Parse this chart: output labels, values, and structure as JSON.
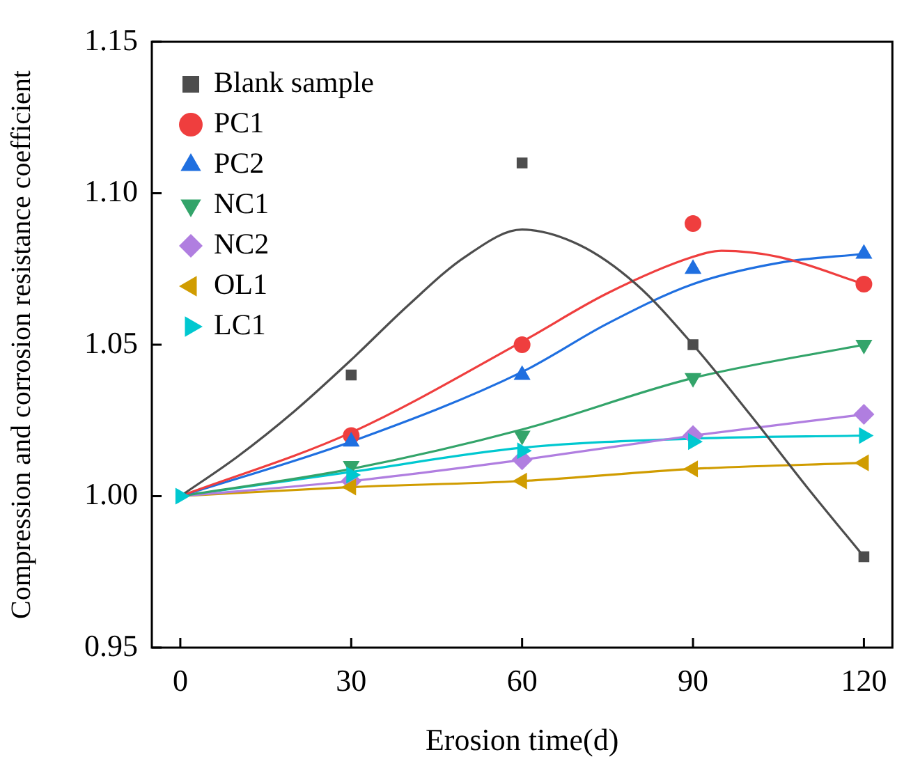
{
  "chart_data": {
    "type": "scatter",
    "xlabel": "Erosion time(d)",
    "ylabel": "Compression and corrosion resistance coefficient",
    "x": [
      0,
      30,
      60,
      90,
      120
    ],
    "xlim": [
      -5,
      125
    ],
    "xticks": [
      0,
      30,
      60,
      90,
      120
    ],
    "ylim": [
      0.95,
      1.15
    ],
    "yticks": [
      0.95,
      {
        "value": 1.0,
        "label": "1.00"
      },
      1.05,
      {
        "value": 1.1,
        "label": "1.10"
      },
      1.15
    ],
    "grid": false,
    "legend": "top left",
    "series": [
      {
        "name": "Blank sample",
        "marker": "square",
        "color": "#4d4d4d",
        "values": [
          null,
          1.04,
          1.11,
          1.05,
          0.98
        ]
      },
      {
        "name": "PC1",
        "marker": "circle",
        "color": "#ef3e3e",
        "values": [
          null,
          1.02,
          1.05,
          1.09,
          1.07
        ]
      },
      {
        "name": "PC2",
        "marker": "triangle",
        "color": "#1f6fe0",
        "values": [
          null,
          1.018,
          1.04,
          1.075,
          1.08
        ]
      },
      {
        "name": "NC1",
        "marker": "triangle-down",
        "color": "#33a46a",
        "values": [
          null,
          1.01,
          1.02,
          1.039,
          1.05
        ]
      },
      {
        "name": "NC2",
        "marker": "diamond",
        "color": "#b07ee0",
        "values": [
          null,
          1.005,
          1.012,
          1.02,
          1.027
        ]
      },
      {
        "name": "OL1",
        "marker": "triangle-left",
        "color": "#d09c00",
        "values": [
          null,
          1.003,
          1.005,
          1.009,
          1.011
        ]
      },
      {
        "name": "LC1",
        "marker": "triangle-right",
        "color": "#00c8d0",
        "values": [
          1.0,
          1.007,
          1.015,
          1.018,
          1.02
        ]
      },
      {
        "type": "line",
        "marker": "none",
        "color": "#4d4d4d",
        "x": [
          0,
          10,
          20,
          30,
          40,
          50,
          60,
          70,
          80,
          90,
          100,
          110,
          120
        ],
        "values": [
          1.0,
          1.013,
          1.028,
          1.045,
          1.063,
          1.079,
          1.088,
          1.083,
          1.07,
          1.05,
          1.027,
          1.003,
          0.98
        ]
      },
      {
        "type": "line",
        "marker": "none",
        "color": "#ef3e3e",
        "x": [
          0,
          30,
          60,
          75,
          90,
          95,
          105,
          120
        ],
        "values": [
          1.0,
          1.021,
          1.051,
          1.067,
          1.079,
          1.081,
          1.079,
          1.07
        ]
      },
      {
        "type": "line",
        "marker": "none",
        "color": "#1f6fe0",
        "x": [
          0,
          30,
          60,
          75,
          90,
          105,
          120
        ],
        "values": [
          1.0,
          1.018,
          1.041,
          1.057,
          1.07,
          1.077,
          1.08
        ]
      },
      {
        "type": "line",
        "marker": "none",
        "color": "#33a46a",
        "x": [
          0,
          30,
          60,
          90,
          120
        ],
        "values": [
          1.0,
          1.009,
          1.022,
          1.039,
          1.05
        ]
      },
      {
        "type": "line",
        "marker": "none",
        "color": "#b07ee0",
        "x": [
          0,
          30,
          60,
          90,
          120
        ],
        "values": [
          1.0,
          1.005,
          1.012,
          1.02,
          1.027
        ]
      },
      {
        "type": "line",
        "marker": "none",
        "color": "#d09c00",
        "x": [
          0,
          30,
          60,
          90,
          120
        ],
        "values": [
          1.0,
          1.003,
          1.005,
          1.009,
          1.011
        ]
      },
      {
        "type": "line",
        "marker": "none",
        "color": "#00c8d0",
        "x": [
          0,
          30,
          60,
          90,
          120
        ],
        "values": [
          1.0,
          1.008,
          1.016,
          1.019,
          1.02
        ]
      }
    ]
  }
}
